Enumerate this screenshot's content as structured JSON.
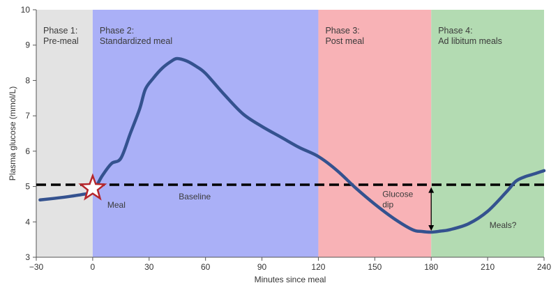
{
  "chart_data": {
    "type": "line",
    "xlabel": "Minutes since meal",
    "ylabel": "Plasma glucose (mmol/L)",
    "xlim": [
      -30,
      240
    ],
    "ylim": [
      3,
      10
    ],
    "x_ticks": [
      -30,
      0,
      30,
      60,
      90,
      120,
      150,
      180,
      210,
      240
    ],
    "x_tick_labels": [
      "−30",
      "0",
      "30",
      "60",
      "90",
      "120",
      "150",
      "180",
      "210",
      "240"
    ],
    "y_ticks": [
      3,
      4,
      5,
      6,
      7,
      8,
      9,
      10
    ],
    "grid": false,
    "baseline": {
      "y": 5.05,
      "label": "Baseline"
    },
    "phases": [
      {
        "name_line1": "Phase 1:",
        "name_line2": "Pre-meal",
        "x_start": -30,
        "x_end": 0,
        "color": "#e3e3e3"
      },
      {
        "name_line1": "Phase 2:",
        "name_line2": "Standardized meal",
        "x_start": 0,
        "x_end": 120,
        "color": "#aab0f7"
      },
      {
        "name_line1": "Phase 3:",
        "name_line2": "Post meal",
        "x_start": 120,
        "x_end": 180,
        "color": "#f8b2b6"
      },
      {
        "name_line1": "Phase 4:",
        "name_line2": "Ad libitum meals",
        "x_start": 180,
        "x_end": 240,
        "color": "#b3dbb2"
      }
    ],
    "series": [
      {
        "color": "#34528f",
        "x": [
          -28,
          -15,
          -5,
          0,
          5,
          10,
          15,
          20,
          25,
          28,
          32,
          37,
          42,
          45,
          50,
          55,
          60,
          70,
          80,
          90,
          100,
          110,
          120,
          130,
          140,
          150,
          160,
          170,
          175,
          180,
          185,
          190,
          200,
          210,
          220,
          225,
          230,
          235,
          240
        ],
        "y": [
          4.62,
          4.7,
          4.78,
          4.85,
          5.3,
          5.65,
          5.8,
          6.5,
          7.2,
          7.75,
          8.05,
          8.35,
          8.55,
          8.62,
          8.55,
          8.4,
          8.2,
          7.6,
          7.05,
          6.7,
          6.4,
          6.1,
          5.85,
          5.45,
          4.95,
          4.5,
          4.1,
          3.78,
          3.73,
          3.71,
          3.74,
          3.78,
          3.95,
          4.3,
          4.85,
          5.15,
          5.28,
          5.36,
          5.45
        ]
      }
    ],
    "annotations": {
      "meal": {
        "label": "Meal",
        "x": 0,
        "y": 4.95
      },
      "glucose_dip": {
        "label_line1": "Glucose",
        "label_line2": "dip",
        "x": 180,
        "y_top": 5.0,
        "y_bottom": 3.71
      },
      "meals_question": {
        "label": "Meals?"
      }
    }
  }
}
